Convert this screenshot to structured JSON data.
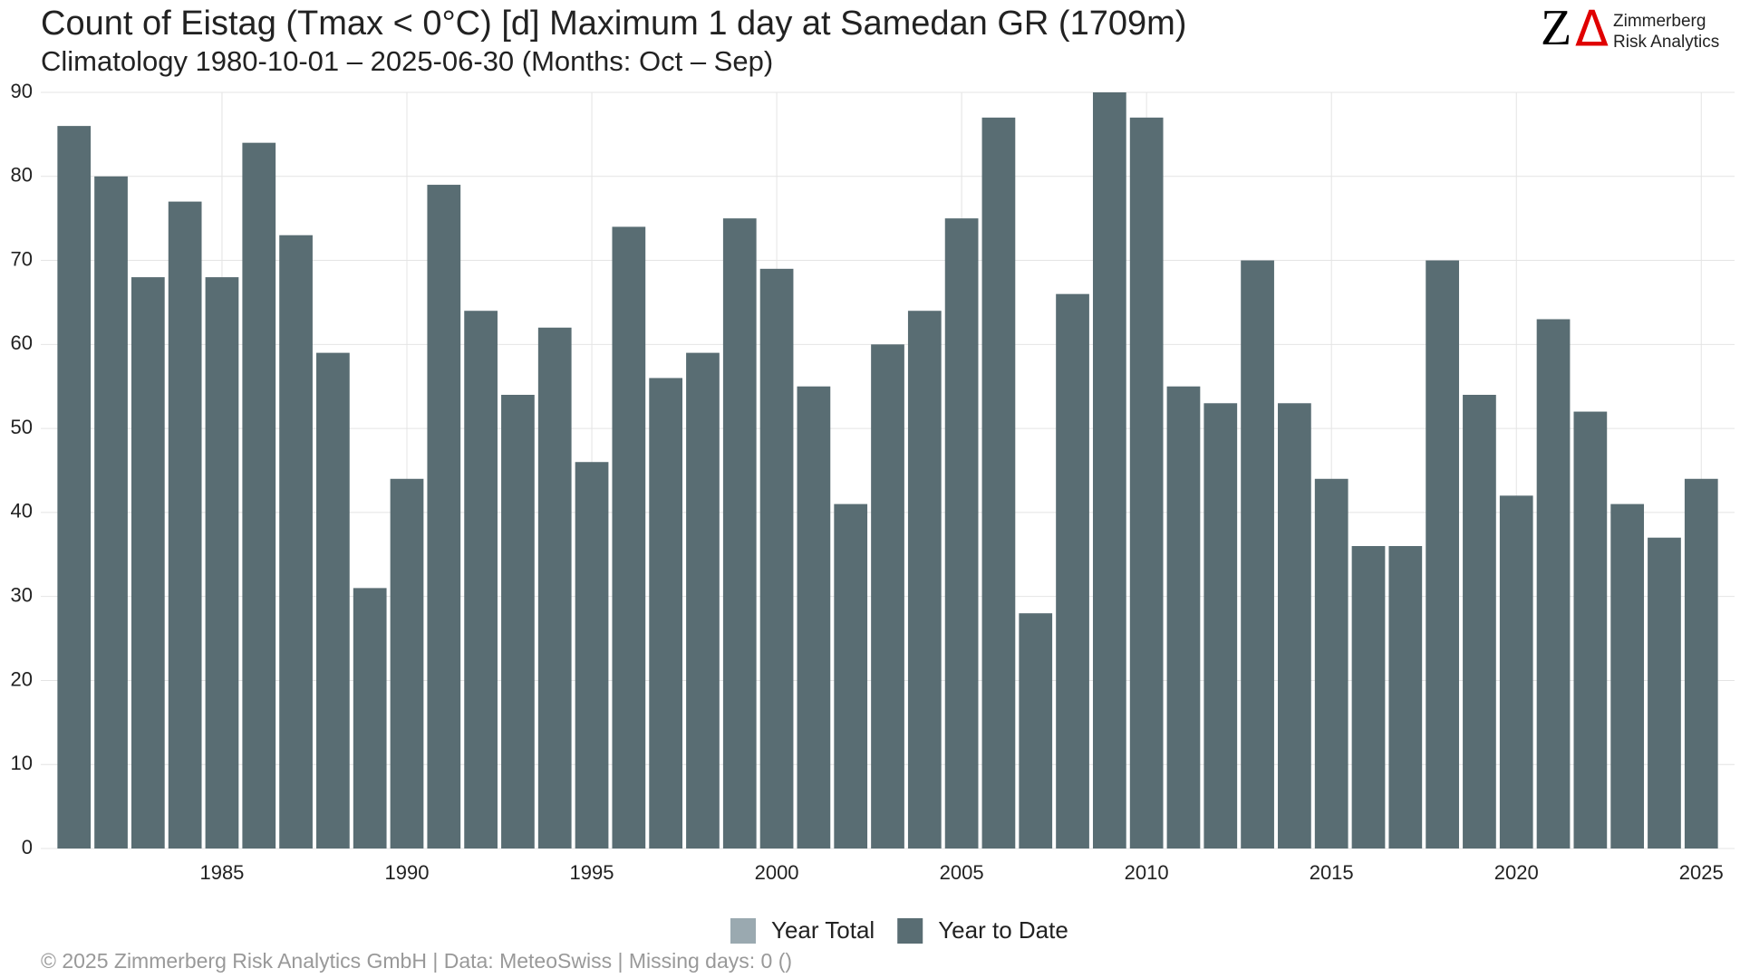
{
  "chart_data": {
    "type": "bar",
    "title": "Count of Eistag (Tmax < 0°C) [d] Maximum 1 day at Samedan  GR (1709m)",
    "subtitle": "Climatology 1980-10-01 – 2025-06-30 (Months: Oct – Sep)",
    "x": [
      1981,
      1982,
      1983,
      1984,
      1985,
      1986,
      1987,
      1988,
      1989,
      1990,
      1991,
      1992,
      1993,
      1994,
      1995,
      1996,
      1997,
      1998,
      1999,
      2000,
      2001,
      2002,
      2003,
      2004,
      2005,
      2006,
      2007,
      2008,
      2009,
      2010,
      2011,
      2012,
      2013,
      2014,
      2015,
      2016,
      2017,
      2018,
      2019,
      2020,
      2021,
      2022,
      2023,
      2024,
      2025
    ],
    "series": [
      {
        "name": "Year to Date",
        "color": "#596d73",
        "values": [
          86,
          80,
          68,
          77,
          68,
          84,
          73,
          59,
          31,
          44,
          79,
          64,
          54,
          62,
          46,
          74,
          56,
          59,
          75,
          69,
          55,
          41,
          60,
          64,
          75,
          87,
          28,
          66,
          90,
          87,
          55,
          53,
          70,
          53,
          44,
          36,
          36,
          70,
          54,
          42,
          63,
          52,
          41,
          37,
          44
        ]
      }
    ],
    "legend": [
      {
        "name": "Year Total",
        "color": "#9aa9b0"
      },
      {
        "name": "Year to Date",
        "color": "#596d73"
      }
    ],
    "xlim": [
      1980.1,
      2025.9
    ],
    "xticks": [
      1985,
      1990,
      1995,
      2000,
      2005,
      2010,
      2015,
      2020,
      2025
    ],
    "ylim": [
      0,
      90
    ],
    "yticks": [
      0,
      10,
      20,
      30,
      40,
      50,
      60,
      70,
      80,
      90
    ],
    "grid": true,
    "legend_position": "bottom",
    "footer": "©  2025 Zimmerberg Risk Analytics GmbH | Data: MeteoSwiss | Missing days: 0 ()",
    "logo": {
      "letter": "Z",
      "delta": "Δ",
      "line1": "Zimmerberg",
      "line2": "Risk Analytics"
    }
  }
}
